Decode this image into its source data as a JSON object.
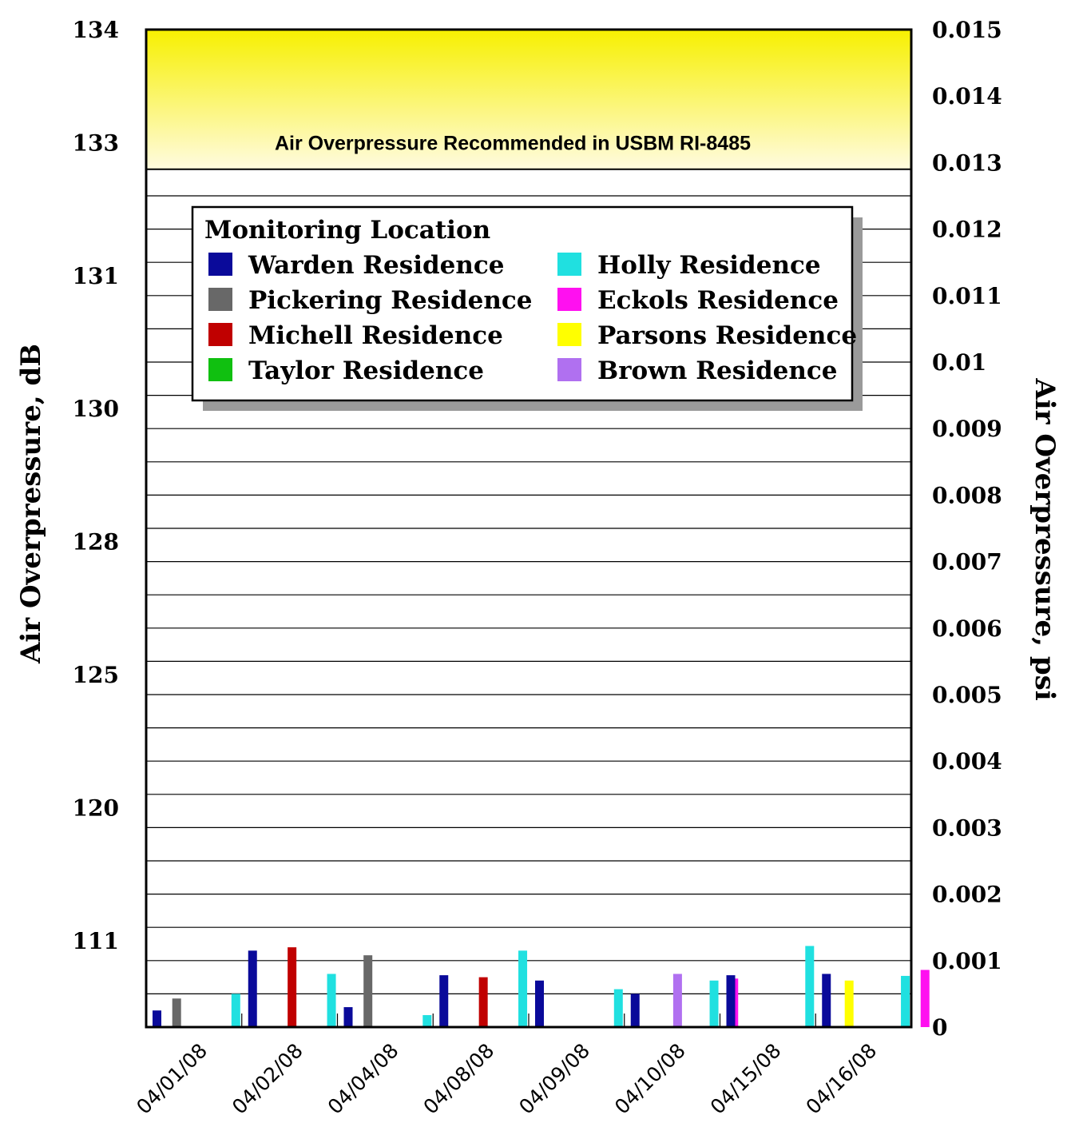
{
  "chart_data": {
    "type": "bar",
    "ylabel": "Air Overpressure, dB",
    "y2label": "Air Overpressure, psi",
    "ylim": [
      0,
      0.015
    ],
    "y2ticks": [
      "0",
      "0.001",
      "0.002",
      "0.003",
      "0.004",
      "0.005",
      "0.006",
      "0.007",
      "0.008",
      "0.009",
      "0.01",
      "0.011",
      "0.012",
      "0.013",
      "0.014",
      "0.015"
    ],
    "y2tick_values": [
      0,
      0.001,
      0.002,
      0.003,
      0.004,
      0.005,
      0.006,
      0.007,
      0.008,
      0.009,
      0.01,
      0.011,
      0.012,
      0.013,
      0.014,
      0.015
    ],
    "yticks": [
      {
        "label": "134",
        "psi": 0.015
      },
      {
        "label": "133",
        "psi": 0.0133
      },
      {
        "label": "131",
        "psi": 0.0113
      },
      {
        "label": "130",
        "psi": 0.0093
      },
      {
        "label": "128",
        "psi": 0.0073
      },
      {
        "label": "125",
        "psi": 0.0053
      },
      {
        "label": "120",
        "psi": 0.0033
      },
      {
        "label": "111",
        "psi": 0.0013
      }
    ],
    "grid": true,
    "threshold": {
      "psi": 0.0129,
      "label": "Air Overpressure Recommended in USBM RI-8485"
    },
    "legend": {
      "title": "Monitoring Location",
      "placement": "top-center"
    },
    "categories": [
      "04/01/08",
      "04/02/08",
      "04/04/08",
      "04/08/08",
      "04/09/08",
      "04/10/08",
      "04/15/08",
      "04/16/08"
    ],
    "series": [
      {
        "name": "Warden Residence",
        "color": "#0a0a9a",
        "values": [
          0.00025,
          0.00115,
          0.0003,
          0.00078,
          0.0007,
          0.0005,
          0.00078,
          0.0008
        ]
      },
      {
        "name": "Pickering Residence",
        "color": "#686868",
        "values": [
          0.00043,
          null,
          0.00108,
          null,
          null,
          null,
          null,
          null
        ]
      },
      {
        "name": "Michell Residence",
        "color": "#c00000",
        "values": [
          null,
          0.0012,
          null,
          0.00075,
          null,
          null,
          null,
          null
        ]
      },
      {
        "name": "Taylor Residence",
        "color": "#10c010",
        "values": [
          null,
          null,
          null,
          null,
          null,
          null,
          null,
          null
        ]
      },
      {
        "name": "Holly Residence",
        "color": "#20e0e0",
        "values": [
          0.0005,
          0.0008,
          0.00018,
          0.00115,
          0.00057,
          0.0007,
          0.00122,
          0.00077
        ]
      },
      {
        "name": "Eckols Residence",
        "color": "#ff10f0",
        "values": [
          null,
          null,
          null,
          null,
          null,
          0.00073,
          null,
          0.00086
        ]
      },
      {
        "name": "Parsons Residence",
        "color": "#ffff00",
        "values": [
          null,
          null,
          null,
          null,
          null,
          null,
          0.0007,
          null
        ]
      },
      {
        "name": "Brown Residence",
        "color": "#b070f0",
        "values": [
          null,
          null,
          null,
          null,
          0.0008,
          null,
          null,
          null
        ]
      }
    ]
  }
}
